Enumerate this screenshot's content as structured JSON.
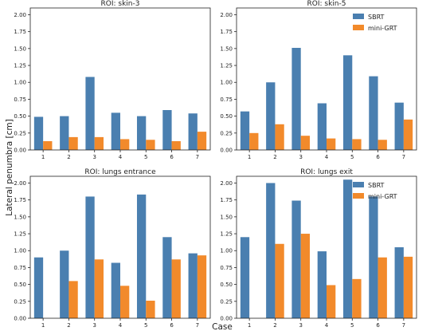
{
  "figure": {
    "ylabel": "Lateral penumbra [cm]",
    "xlabel": "Case"
  },
  "colors": {
    "SBRT": "#4a7fb0",
    "mini-GRT": "#f28a2b"
  },
  "legend": {
    "entries": [
      "SBRT",
      "mini-GRT"
    ],
    "placement": "top-right"
  },
  "chart_data": [
    {
      "type": "bar",
      "title": "ROI: skin-3",
      "categories": [
        "1",
        "2",
        "3",
        "4",
        "5",
        "6",
        "7"
      ],
      "series": [
        {
          "name": "SBRT",
          "values": [
            0.49,
            0.5,
            1.08,
            0.55,
            0.5,
            0.59,
            0.54
          ]
        },
        {
          "name": "mini-GRT",
          "values": [
            0.13,
            0.19,
            0.19,
            0.16,
            0.15,
            0.13,
            0.27
          ]
        }
      ],
      "ylim": [
        0,
        2.1
      ],
      "yticks": [
        "0.00",
        "0.25",
        "0.50",
        "0.75",
        "1.00",
        "1.25",
        "1.50",
        "1.75",
        "2.00"
      ],
      "legend": false
    },
    {
      "type": "bar",
      "title": "ROI: skin-5",
      "categories": [
        "1",
        "2",
        "3",
        "4",
        "5",
        "6",
        "7"
      ],
      "series": [
        {
          "name": "SBRT",
          "values": [
            0.57,
            1.0,
            1.51,
            0.69,
            1.4,
            1.09,
            0.7
          ]
        },
        {
          "name": "mini-GRT",
          "values": [
            0.25,
            0.38,
            0.21,
            0.17,
            0.16,
            0.15,
            0.45
          ]
        }
      ],
      "ylim": [
        0,
        2.1
      ],
      "yticks": [
        "0.00",
        "0.25",
        "0.50",
        "0.75",
        "1.00",
        "1.25",
        "1.50",
        "1.75",
        "2.00"
      ],
      "legend": true
    },
    {
      "type": "bar",
      "title": "ROI: lungs entrance",
      "categories": [
        "1",
        "2",
        "3",
        "4",
        "5",
        "6",
        "7"
      ],
      "series": [
        {
          "name": "SBRT",
          "values": [
            0.9,
            1.0,
            1.8,
            0.82,
            1.83,
            1.2,
            0.96
          ]
        },
        {
          "name": "mini-GRT",
          "values": [
            0.0,
            0.55,
            0.87,
            0.48,
            0.26,
            0.87,
            0.93
          ]
        }
      ],
      "ylim": [
        0,
        2.1
      ],
      "yticks": [
        "0.00",
        "0.25",
        "0.50",
        "0.75",
        "1.00",
        "1.25",
        "1.50",
        "1.75",
        "2.00"
      ],
      "legend": false
    },
    {
      "type": "bar",
      "title": "ROI: lungs exit",
      "categories": [
        "1",
        "2",
        "3",
        "4",
        "5",
        "6",
        "7"
      ],
      "series": [
        {
          "name": "SBRT",
          "values": [
            1.2,
            2.0,
            1.74,
            0.99,
            2.05,
            1.8,
            1.05
          ]
        },
        {
          "name": "mini-GRT",
          "values": [
            0.0,
            1.1,
            1.25,
            0.49,
            0.58,
            0.9,
            0.91
          ]
        }
      ],
      "ylim": [
        0,
        2.1
      ],
      "yticks": [
        "0.00",
        "0.25",
        "0.50",
        "0.75",
        "1.00",
        "1.25",
        "1.50",
        "1.75",
        "2.00"
      ],
      "legend": true
    }
  ]
}
